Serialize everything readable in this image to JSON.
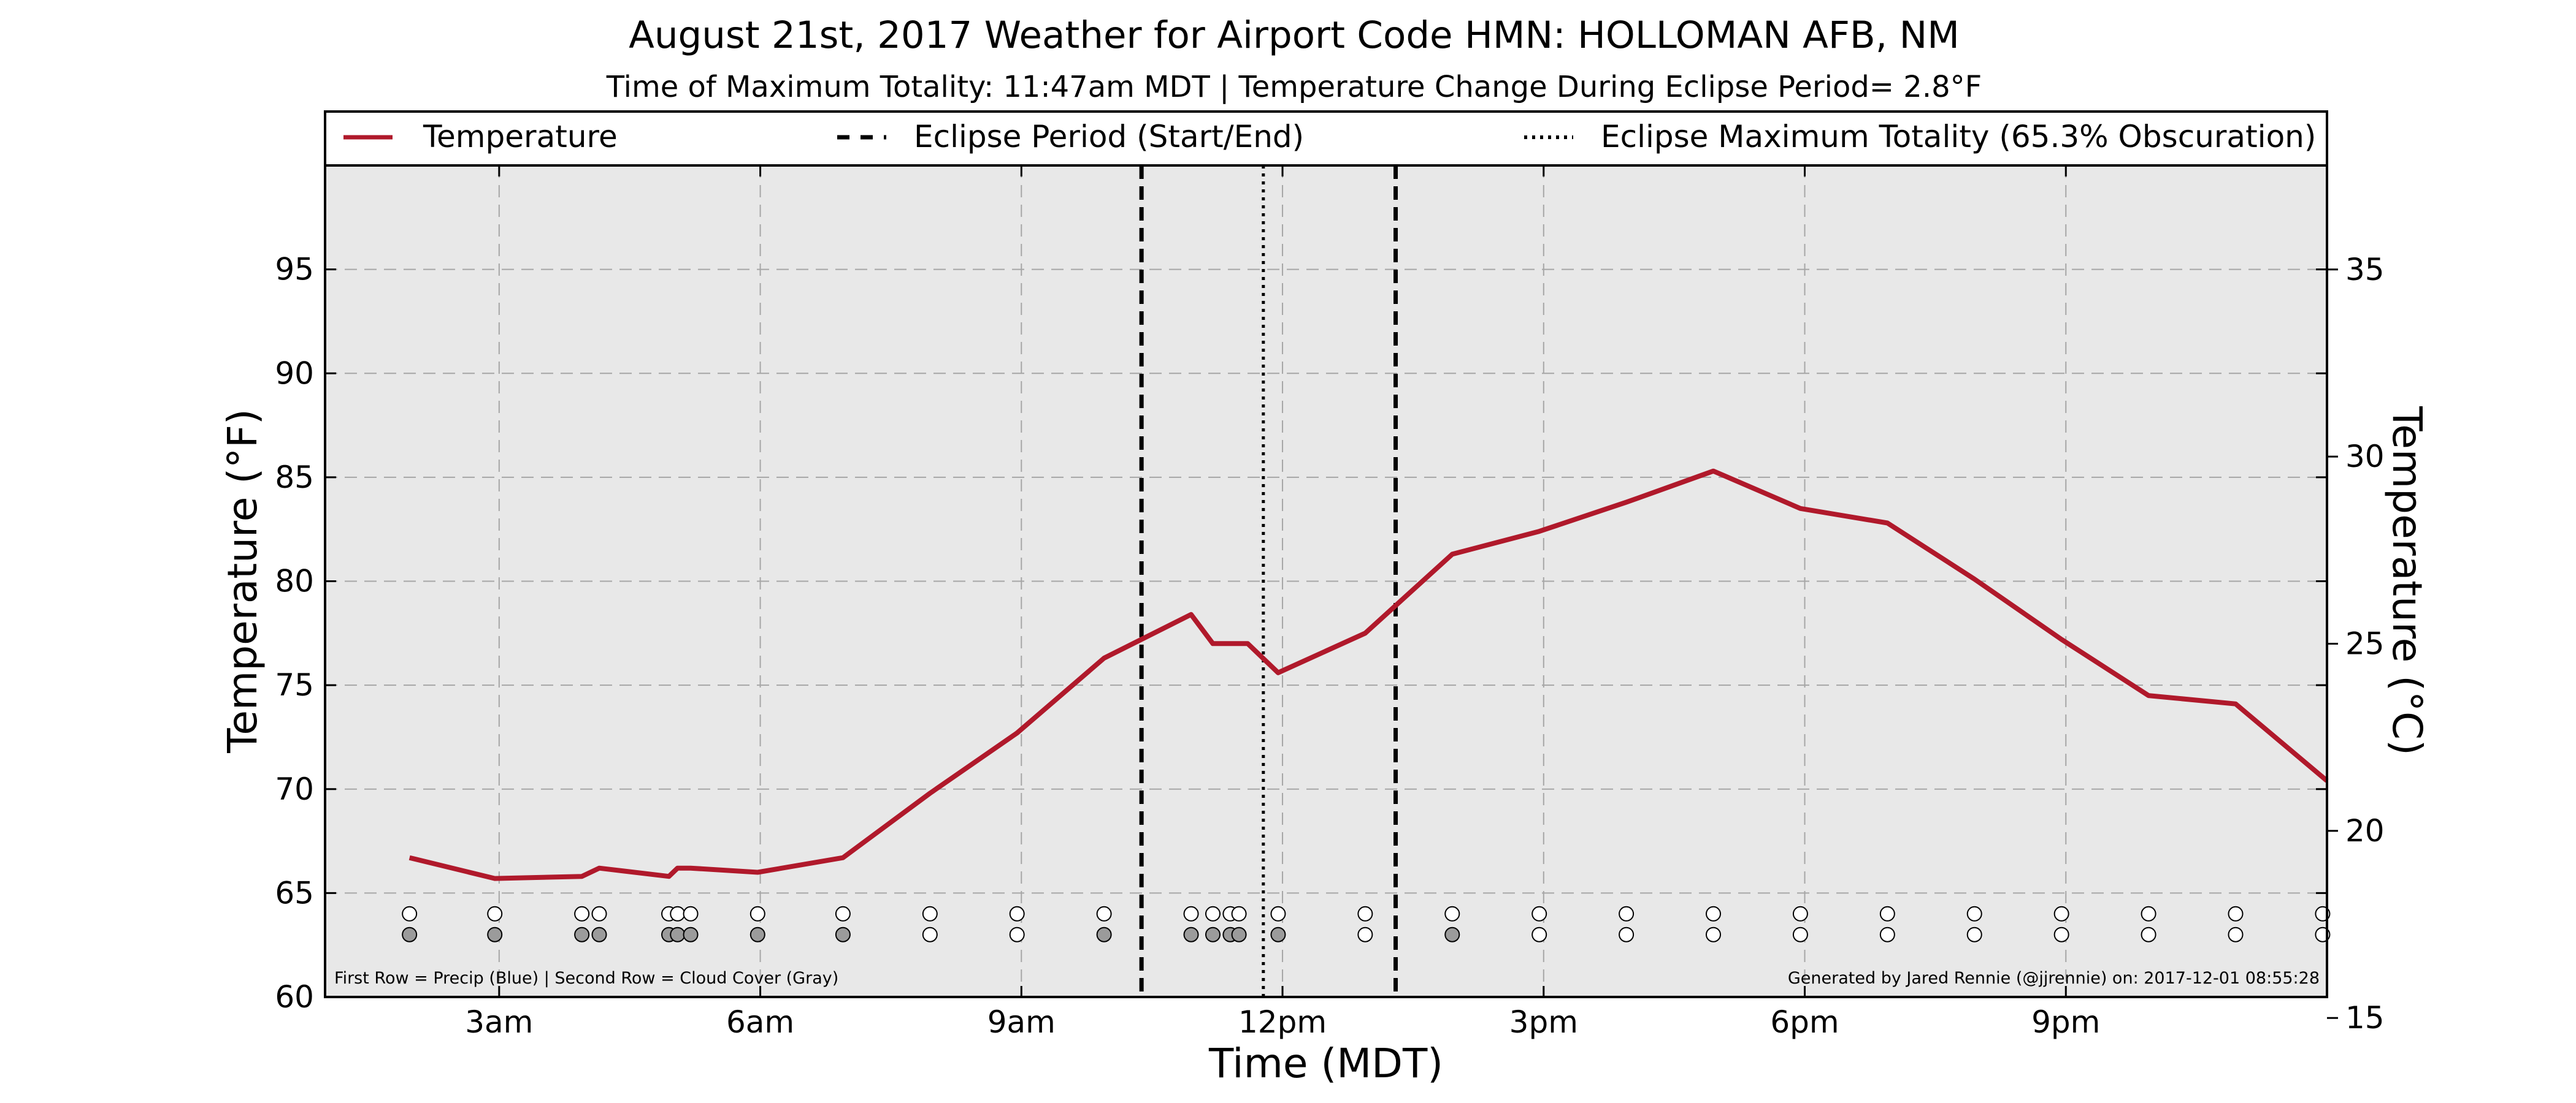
{
  "chart_data": {
    "type": "line",
    "title": "August 21st, 2017 Weather for Airport Code HMN: HOLLOMAN AFB, NM",
    "subtitle": "Time of Maximum Totality: 11:47am MDT | Temperature Change During Eclipse Period= 2.8°F",
    "xlabel": "Time (MDT)",
    "ylabel": "Temperature (°F)",
    "y2label": "Temperature (°C)",
    "xlim": [
      1.0,
      24.0
    ],
    "ylim": [
      60,
      100
    ],
    "y2lim": [
      15.56,
      37.78
    ],
    "x_ticks": [
      {
        "x": 3,
        "label": "3am"
      },
      {
        "x": 6,
        "label": "6am"
      },
      {
        "x": 9,
        "label": "9am"
      },
      {
        "x": 12,
        "label": "12pm"
      },
      {
        "x": 15,
        "label": "3pm"
      },
      {
        "x": 18,
        "label": "6pm"
      },
      {
        "x": 21,
        "label": "9pm"
      }
    ],
    "y_ticks": [
      60,
      65,
      70,
      75,
      80,
      85,
      90,
      95
    ],
    "y2_ticks": [
      15,
      20,
      25,
      30,
      35
    ],
    "grid": true,
    "legend": {
      "placement": "top, above plot",
      "entries": [
        {
          "label": "Temperature",
          "style": "solid",
          "color": "#b0192b"
        },
        {
          "label": "Eclipse Period (Start/End)",
          "style": "dashed",
          "color": "#000000"
        },
        {
          "label": "Eclipse Maximum Totality (65.3% Obscuration)",
          "style": "dotted",
          "color": "#000000"
        }
      ]
    },
    "series": [
      {
        "name": "Temperature",
        "color": "#b0192b",
        "points": [
          [
            1.97,
            66.7
          ],
          [
            2.95,
            65.7
          ],
          [
            3.95,
            65.8
          ],
          [
            4.15,
            66.2
          ],
          [
            4.95,
            65.8
          ],
          [
            5.05,
            66.2
          ],
          [
            5.2,
            66.2
          ],
          [
            5.97,
            66.0
          ],
          [
            6.95,
            66.7
          ],
          [
            7.95,
            69.8
          ],
          [
            8.95,
            72.7
          ],
          [
            9.95,
            76.3
          ],
          [
            10.95,
            78.4
          ],
          [
            11.2,
            77.0
          ],
          [
            11.4,
            77.0
          ],
          [
            11.6,
            77.0
          ],
          [
            11.95,
            75.6
          ],
          [
            12.95,
            77.5
          ],
          [
            13.95,
            81.3
          ],
          [
            14.95,
            82.4
          ],
          [
            15.95,
            83.8
          ],
          [
            16.95,
            85.3
          ],
          [
            17.95,
            83.5
          ],
          [
            18.95,
            82.8
          ],
          [
            19.95,
            80.1
          ],
          [
            20.95,
            77.2
          ],
          [
            21.95,
            74.5
          ],
          [
            22.95,
            74.1
          ],
          [
            24.0,
            70.4
          ]
        ]
      }
    ],
    "eclipse_period": {
      "start": 10.38,
      "end": 13.3
    },
    "eclipse_max": 11.78,
    "marker_rows": {
      "precip_y": 64.0,
      "cloud_y": 63.0,
      "precip": [
        {
          "x": 1.97,
          "color": "#ffffff"
        },
        {
          "x": 2.95,
          "color": "#ffffff"
        },
        {
          "x": 3.95,
          "color": "#ffffff"
        },
        {
          "x": 4.15,
          "color": "#ffffff"
        },
        {
          "x": 4.95,
          "color": "#ffffff"
        },
        {
          "x": 5.05,
          "color": "#ffffff"
        },
        {
          "x": 5.2,
          "color": "#ffffff"
        },
        {
          "x": 5.97,
          "color": "#ffffff"
        },
        {
          "x": 6.95,
          "color": "#ffffff"
        },
        {
          "x": 7.95,
          "color": "#ffffff"
        },
        {
          "x": 8.95,
          "color": "#ffffff"
        },
        {
          "x": 9.95,
          "color": "#ffffff"
        },
        {
          "x": 10.95,
          "color": "#ffffff"
        },
        {
          "x": 11.2,
          "color": "#ffffff"
        },
        {
          "x": 11.4,
          "color": "#ffffff"
        },
        {
          "x": 11.5,
          "color": "#ffffff"
        },
        {
          "x": 11.95,
          "color": "#ffffff"
        },
        {
          "x": 12.95,
          "color": "#ffffff"
        },
        {
          "x": 13.95,
          "color": "#ffffff"
        },
        {
          "x": 14.95,
          "color": "#ffffff"
        },
        {
          "x": 15.95,
          "color": "#ffffff"
        },
        {
          "x": 16.95,
          "color": "#ffffff"
        },
        {
          "x": 17.95,
          "color": "#ffffff"
        },
        {
          "x": 18.95,
          "color": "#ffffff"
        },
        {
          "x": 19.95,
          "color": "#ffffff"
        },
        {
          "x": 20.95,
          "color": "#ffffff"
        },
        {
          "x": 21.95,
          "color": "#ffffff"
        },
        {
          "x": 22.95,
          "color": "#ffffff"
        },
        {
          "x": 23.95,
          "color": "#ffffff"
        }
      ],
      "cloud": [
        {
          "x": 1.97,
          "color": "#9b9b9b"
        },
        {
          "x": 2.95,
          "color": "#9b9b9b"
        },
        {
          "x": 3.95,
          "color": "#9b9b9b"
        },
        {
          "x": 4.15,
          "color": "#9b9b9b"
        },
        {
          "x": 4.95,
          "color": "#9b9b9b"
        },
        {
          "x": 5.05,
          "color": "#9b9b9b"
        },
        {
          "x": 5.2,
          "color": "#9b9b9b"
        },
        {
          "x": 5.97,
          "color": "#9b9b9b"
        },
        {
          "x": 6.95,
          "color": "#9b9b9b"
        },
        {
          "x": 7.95,
          "color": "#ffffff"
        },
        {
          "x": 8.95,
          "color": "#ffffff"
        },
        {
          "x": 9.95,
          "color": "#9b9b9b"
        },
        {
          "x": 10.95,
          "color": "#9b9b9b"
        },
        {
          "x": 11.2,
          "color": "#9b9b9b"
        },
        {
          "x": 11.4,
          "color": "#9b9b9b"
        },
        {
          "x": 11.5,
          "color": "#9b9b9b"
        },
        {
          "x": 11.95,
          "color": "#9b9b9b"
        },
        {
          "x": 12.95,
          "color": "#ffffff"
        },
        {
          "x": 13.95,
          "color": "#9b9b9b"
        },
        {
          "x": 14.95,
          "color": "#ffffff"
        },
        {
          "x": 15.95,
          "color": "#ffffff"
        },
        {
          "x": 16.95,
          "color": "#ffffff"
        },
        {
          "x": 17.95,
          "color": "#ffffff"
        },
        {
          "x": 18.95,
          "color": "#ffffff"
        },
        {
          "x": 19.95,
          "color": "#ffffff"
        },
        {
          "x": 20.95,
          "color": "#ffffff"
        },
        {
          "x": 21.95,
          "color": "#ffffff"
        },
        {
          "x": 22.95,
          "color": "#ffffff"
        },
        {
          "x": 23.95,
          "color": "#ffffff"
        }
      ]
    },
    "footnote_left": "First Row = Precip (Blue) | Second Row = Cloud Cover (Gray)",
    "footnote_right": "Generated by Jared Rennie (@jjrennie) on: 2017-12-01 08:55:28",
    "colors": {
      "plot_background": "#e8e8e8",
      "grid": "#a6a6a6",
      "temperature": "#b0192b",
      "eclipse_lines": "#000000"
    }
  }
}
